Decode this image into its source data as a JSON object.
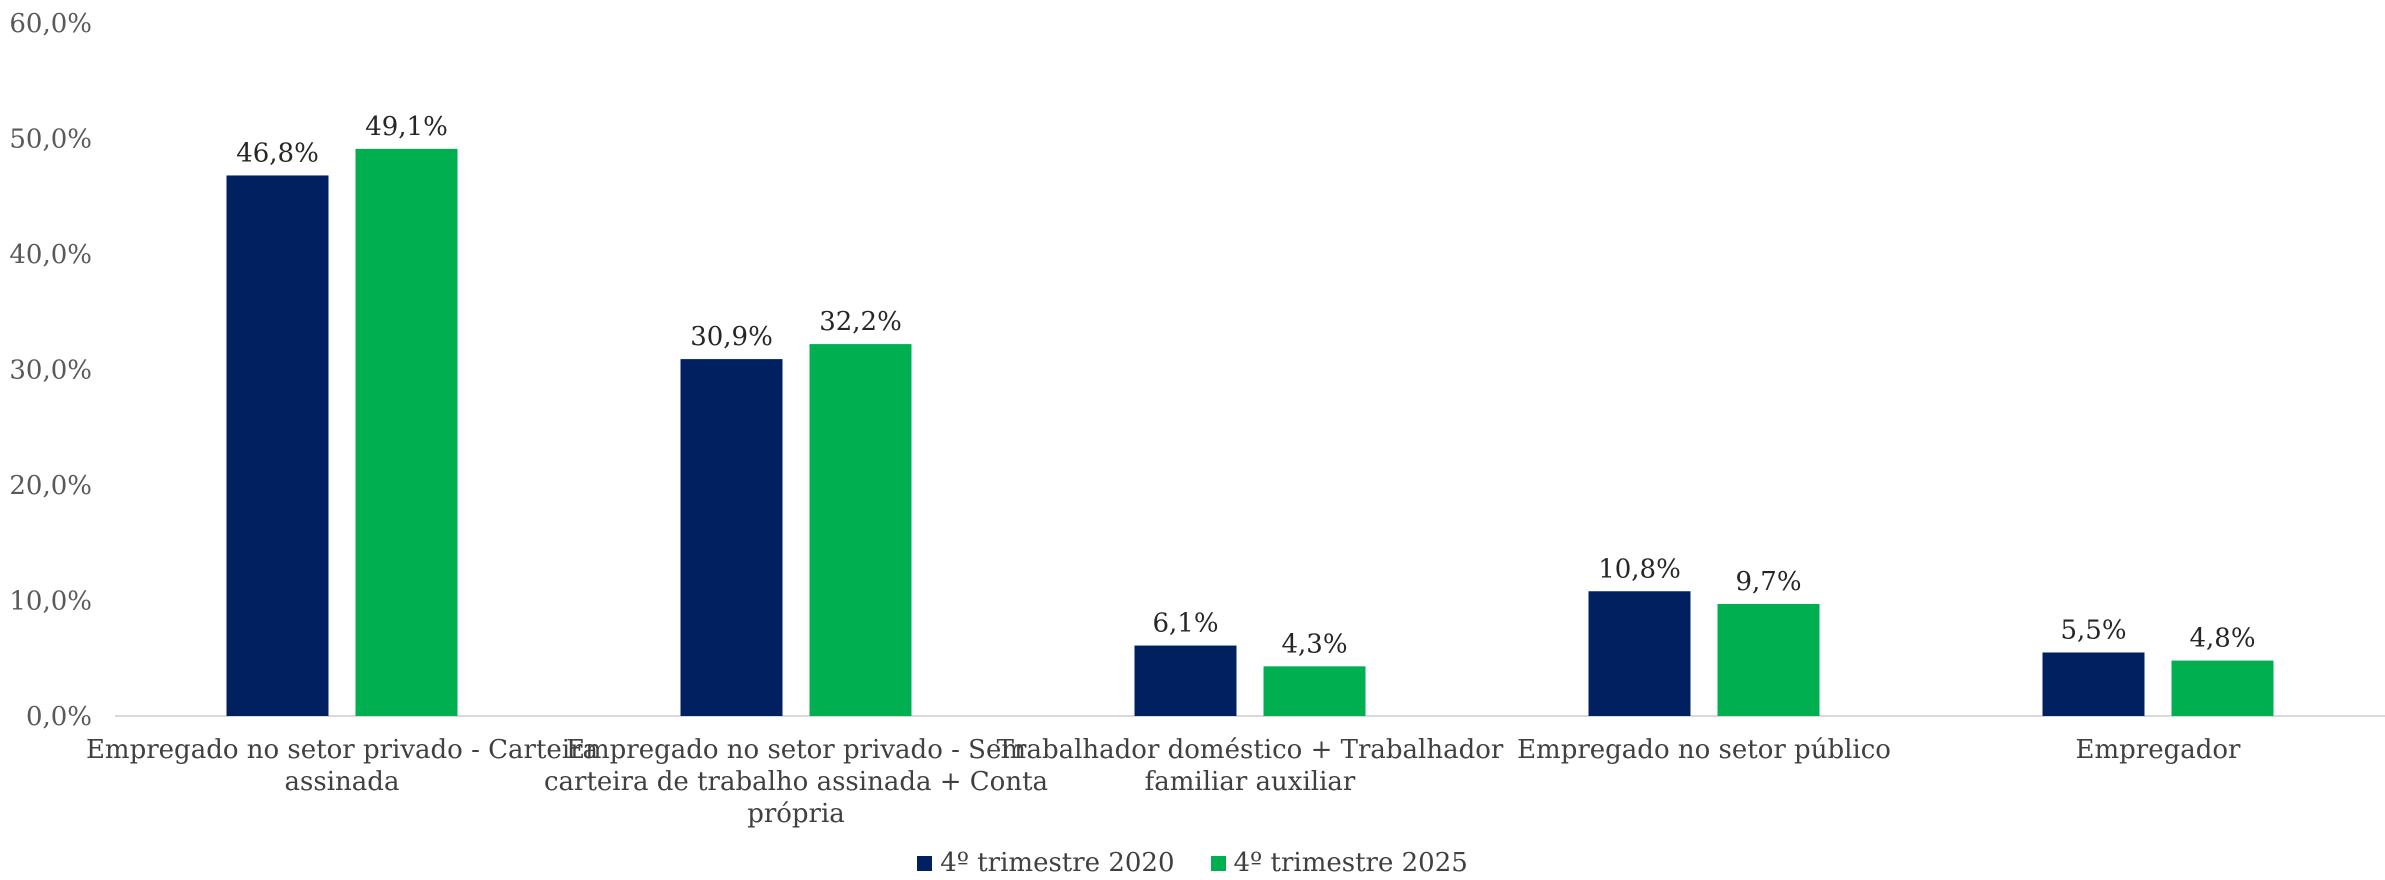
{
  "chart_data": {
    "type": "bar",
    "title": "",
    "xlabel": "",
    "ylabel": "",
    "ylim": [
      0,
      60
    ],
    "yticks": [
      "0,0%",
      "10,0%",
      "20,0%",
      "30,0%",
      "40,0%",
      "50,0%",
      "60,0%"
    ],
    "grid": false,
    "legend_position": "bottom",
    "categories": [
      [
        "Empregado no setor privado - Carteira",
        "assinada"
      ],
      [
        "Empregado no setor privado - Sem",
        "carteira de trabalho assinada + Conta",
        "própria"
      ],
      [
        "Trabalhador doméstico + Trabalhador",
        "familiar auxiliar"
      ],
      [
        "Empregado no setor público"
      ],
      [
        "Empregador"
      ]
    ],
    "series": [
      {
        "name": "4º trimestre 2020",
        "color": "#002060",
        "values": [
          46.8,
          30.9,
          6.1,
          10.8,
          5.5
        ],
        "labels": [
          "46,8%",
          "30,9%",
          "6,1%",
          "10,8%",
          "5,5%"
        ]
      },
      {
        "name": "4º trimestre 2025",
        "color": "#00B050",
        "values": [
          49.1,
          32.2,
          4.3,
          9.7,
          4.8
        ],
        "labels": [
          "49,1%",
          "32,2%",
          "4,3%",
          "9,7%",
          "4,8%"
        ]
      }
    ]
  }
}
